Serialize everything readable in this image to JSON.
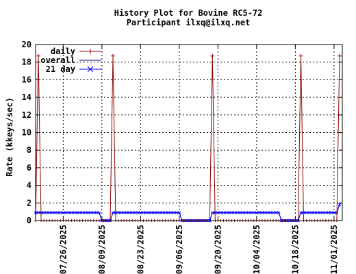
{
  "chart_data": {
    "type": "line",
    "title": "History Plot for Bovine RC5-72",
    "subtitle": "Participant ilxq@ilxq.net",
    "ylabel": "Rate (kkeys/sec)",
    "xlabel": "",
    "ylim": [
      0,
      20
    ],
    "xlim": [
      "2025-07-16",
      "2025-11-04"
    ],
    "y_ticks": [
      0,
      2,
      4,
      6,
      8,
      10,
      12,
      14,
      16,
      18,
      20
    ],
    "x_ticks": [
      "07/26/2025",
      "08/09/2025",
      "08/23/2025",
      "09/06/2025",
      "09/20/2025",
      "10/04/2025",
      "10/18/2025",
      "11/01/2025"
    ],
    "grid": true,
    "legend_position": "top-left",
    "series": [
      {
        "name": "daily",
        "color": "#8b0000",
        "marker": "plus",
        "points": [
          [
            "2025-07-16",
            0
          ],
          [
            "2025-07-17",
            18.7
          ],
          [
            "2025-07-18",
            0
          ],
          [
            "2025-08-12",
            0
          ],
          [
            "2025-08-13",
            18.7
          ],
          [
            "2025-08-14",
            0
          ],
          [
            "2025-09-17",
            0
          ],
          [
            "2025-09-18",
            18.7
          ],
          [
            "2025-09-19",
            0
          ],
          [
            "2025-10-19",
            0
          ],
          [
            "2025-10-20",
            18.7
          ],
          [
            "2025-10-21",
            0
          ],
          [
            "2025-11-02",
            0
          ],
          [
            "2025-11-03",
            18.7
          ]
        ]
      },
      {
        "name": "overall",
        "color": "#000080",
        "marker": "none",
        "points": [
          [
            "2025-07-16",
            0.9
          ],
          [
            "2025-08-08",
            0.9
          ],
          [
            "2025-08-09",
            0
          ],
          [
            "2025-08-12",
            0
          ],
          [
            "2025-08-13",
            0.9
          ],
          [
            "2025-09-06",
            0.9
          ],
          [
            "2025-09-07",
            0
          ],
          [
            "2025-09-17",
            0
          ],
          [
            "2025-09-18",
            0.9
          ],
          [
            "2025-10-12",
            0.9
          ],
          [
            "2025-10-13",
            0
          ],
          [
            "2025-10-19",
            0
          ],
          [
            "2025-10-20",
            0.9
          ],
          [
            "2025-11-02",
            0.9
          ],
          [
            "2025-11-03",
            1.8
          ]
        ]
      },
      {
        "name": "21 day",
        "color": "#0000ff",
        "marker": "cross",
        "points": [
          [
            "2025-07-16",
            0.9
          ],
          [
            "2025-08-08",
            0.9
          ],
          [
            "2025-08-09",
            0
          ],
          [
            "2025-08-12",
            0
          ],
          [
            "2025-08-13",
            0.9
          ],
          [
            "2025-09-06",
            0.9
          ],
          [
            "2025-09-07",
            0
          ],
          [
            "2025-09-17",
            0
          ],
          [
            "2025-09-18",
            0.9
          ],
          [
            "2025-10-12",
            0.9
          ],
          [
            "2025-10-13",
            0
          ],
          [
            "2025-10-19",
            0
          ],
          [
            "2025-10-20",
            0.9
          ],
          [
            "2025-11-02",
            0.9
          ],
          [
            "2025-11-03",
            1.8
          ]
        ]
      }
    ]
  }
}
